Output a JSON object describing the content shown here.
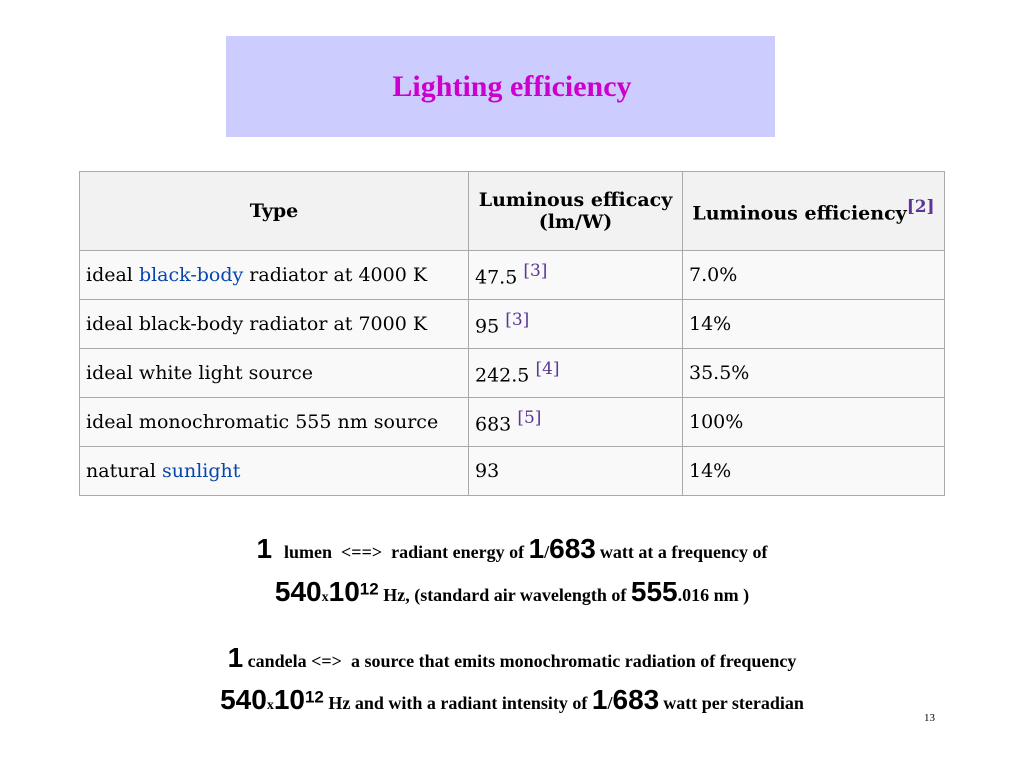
{
  "title": "Lighting efficiency",
  "colors": {
    "title_text": "#cc00cc",
    "title_bg": "#ccccff",
    "link": "#0645ad",
    "ref": "#5a3696"
  },
  "table": {
    "headers": {
      "type": "Type",
      "efficacy_line1": "Luminous efficacy",
      "efficacy_line2": "(lm/W)",
      "efficiency": "Luminous efficiency",
      "efficiency_ref": "[2]"
    },
    "rows": [
      {
        "pre": "ideal ",
        "link": "black-body",
        "post": " radiator at 4000 K",
        "efficacy": "47.5",
        "ref": "[3]",
        "efficiency": "7.0%"
      },
      {
        "pre": "ideal black-body radiator at 7000 K",
        "link": "",
        "post": "",
        "efficacy": "95",
        "ref": "[3]",
        "efficiency": "14%"
      },
      {
        "pre": "ideal white light source",
        "link": "",
        "post": "",
        "efficacy": "242.5",
        "ref": "[4]",
        "efficiency": "35.5%"
      },
      {
        "pre": "ideal monochromatic 555 nm source",
        "link": "",
        "post": "",
        "efficacy": "683",
        "ref": "[5]",
        "efficiency": "100%"
      },
      {
        "pre": "natural ",
        "link": "sunlight",
        "post": "",
        "efficacy": "93",
        "ref": "",
        "efficiency": "14%"
      }
    ]
  },
  "lumen": {
    "line1": {
      "one": "1",
      "t1": "lumen  <==>  radiant energy of ",
      "n1": "1",
      "slash": "/",
      "n683": "683",
      "t2": " watt at a frequency of"
    },
    "line2": {
      "n540": "540",
      "x": "x",
      "n10": "10",
      "exp": "12",
      "t1": " Hz, (standard air wavelength of ",
      "n555": "555",
      "t2": ".016 nm )"
    }
  },
  "candela": {
    "line1": {
      "one": "1",
      "t1": " candela <=>  a source that emits monochromatic radiation of frequency"
    },
    "line2": {
      "n540": "540",
      "x": "x",
      "n10": "10",
      "exp": "12",
      "t1": " Hz and with a radiant intensity of ",
      "n1": "1",
      "slash": "/",
      "n683": "683",
      "t2": " watt per steradian"
    }
  },
  "page_number": "13"
}
